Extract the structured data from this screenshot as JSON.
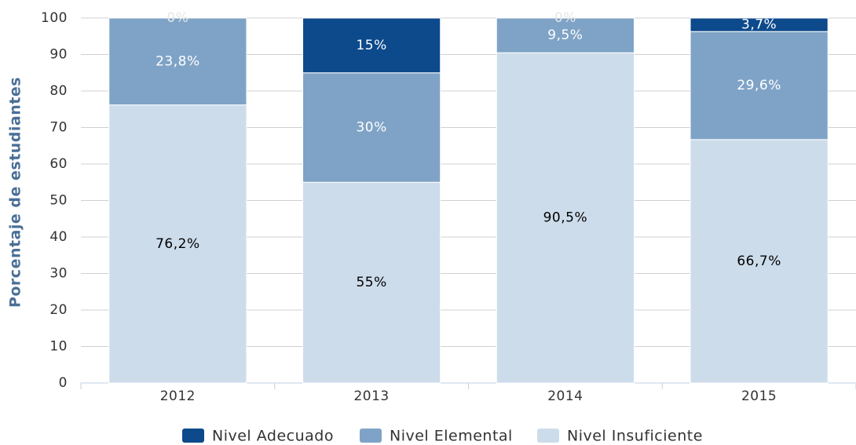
{
  "chart_data": {
    "type": "stacked_bar",
    "y_label": "Porcentaje de estudiantes",
    "categories": [
      "2012",
      "2013",
      "2014",
      "2015"
    ],
    "series": [
      {
        "name": "Nivel Adecuado",
        "color": "#0d4a8c",
        "label_color": "#ffffff",
        "values": [
          0,
          15,
          0,
          3.7
        ],
        "value_labels": [
          "0%",
          "15%",
          "0%",
          "3,7%"
        ]
      },
      {
        "name": "Nivel Elemental",
        "color": "#7fa3c6",
        "label_color": "#ffffff",
        "values": [
          23.8,
          30,
          9.5,
          29.6
        ],
        "value_labels": [
          "23,8%",
          "30%",
          "9,5%",
          "29,6%"
        ]
      },
      {
        "name": "Nivel Insuficiente",
        "color": "#cddceb",
        "label_color": "#000000",
        "values": [
          76.2,
          55,
          90.5,
          66.7
        ],
        "value_labels": [
          "76,2%",
          "55%",
          "90,5%",
          "66,7%"
        ]
      }
    ],
    "ylim": [
      0,
      100
    ],
    "yticks": [
      0,
      10,
      20,
      30,
      40,
      50,
      60,
      70,
      80,
      90,
      100
    ],
    "grid": true,
    "legend": "bottom"
  }
}
